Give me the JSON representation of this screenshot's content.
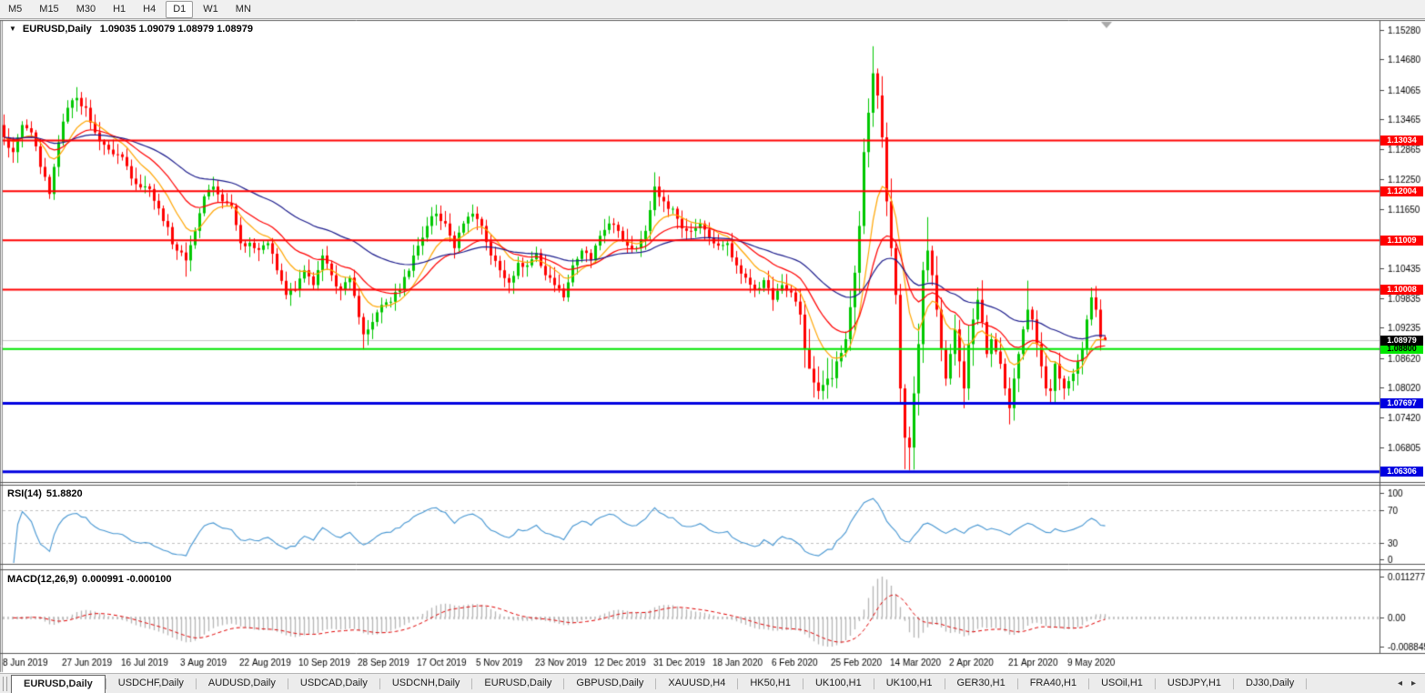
{
  "toolbar": {
    "timeframes": [
      {
        "label": "M5",
        "active": false
      },
      {
        "label": "M15",
        "active": false
      },
      {
        "label": "M30",
        "active": false
      },
      {
        "label": "H1",
        "active": false
      },
      {
        "label": "H4",
        "active": false
      },
      {
        "label": "D1",
        "active": true
      },
      {
        "label": "W1",
        "active": false
      },
      {
        "label": "MN",
        "active": false
      }
    ]
  },
  "header": {
    "symbol_label": "EURUSD,Daily",
    "ohlc_values": "1.09035 1.09079 1.08979 1.08979"
  },
  "rsi_panel": {
    "name": "RSI(14)",
    "value": "51.8820",
    "axis_ticks": [
      {
        "label": "100",
        "v": 100
      },
      {
        "label": "70",
        "v": 70
      },
      {
        "label": "30",
        "v": 30
      },
      {
        "label": "0",
        "v": 0
      }
    ],
    "guide_levels": [
      70,
      30
    ],
    "line_color": "#4696d2"
  },
  "macd_panel": {
    "name": "MACD(12,26,9)",
    "values": "0.000991 -0.000100",
    "axis_ticks": [
      {
        "label": "0.011277",
        "pos": "max"
      },
      {
        "label": "0.00",
        "pos": "zero"
      },
      {
        "label": "-0.008845",
        "pos": "min"
      }
    ],
    "histogram_color": "#b6b6b6",
    "signal_color": "#e00000"
  },
  "chart_data": {
    "type": "candlestick",
    "title": "EURUSD,Daily",
    "symbol": "EURUSD",
    "timeframe": "Daily",
    "last_bar_ohlc": {
      "open": 1.09035,
      "high": 1.09079,
      "low": 1.08979,
      "close": 1.08979
    },
    "ylim": [
      1.061,
      1.15483
    ],
    "y_axis_ticks": [
      1.1528,
      1.1468,
      1.14065,
      1.13465,
      1.12865,
      1.1225,
      1.1165,
      1.10435,
      1.09835,
      1.09235,
      1.0862,
      1.0802,
      1.0742,
      1.06805
    ],
    "x_axis_labels": [
      "8 Jun 2019",
      "27 Jun 2019",
      "16 Jul 2019",
      "3 Aug 2019",
      "22 Aug 2019",
      "10 Sep 2019",
      "28 Sep 2019",
      "17 Oct 2019",
      "5 Nov 2019",
      "23 Nov 2019",
      "12 Dec 2019",
      "31 Dec 2019",
      "18 Jan 2020",
      "6 Feb 2020",
      "25 Feb 2020",
      "14 Mar 2020",
      "2 Apr 2020",
      "21 Apr 2020",
      "9 May 2020"
    ],
    "bars_per_label": 13,
    "bar_count": 243,
    "close_anchors": [
      [
        0,
        1.131
      ],
      [
        2,
        1.128
      ],
      [
        4,
        1.1335
      ],
      [
        6,
        1.132
      ],
      [
        8,
        1.125
      ],
      [
        10,
        1.1195
      ],
      [
        12,
        1.13
      ],
      [
        14,
        1.137
      ],
      [
        16,
        1.139
      ],
      [
        18,
        1.137
      ],
      [
        20,
        1.132
      ],
      [
        23,
        1.1285
      ],
      [
        26,
        1.127
      ],
      [
        29,
        1.1215
      ],
      [
        32,
        1.1205
      ],
      [
        35,
        1.114
      ],
      [
        38,
        1.108
      ],
      [
        40,
        1.106
      ],
      [
        42,
        1.112
      ],
      [
        44,
        1.119
      ],
      [
        46,
        1.121
      ],
      [
        48,
        1.118
      ],
      [
        50,
        1.117
      ],
      [
        52,
        1.1095
      ],
      [
        55,
        1.1085
      ],
      [
        58,
        1.1095
      ],
      [
        60,
        1.104
      ],
      [
        62,
        1.099
      ],
      [
        64,
        1.1
      ],
      [
        66,
        1.104
      ],
      [
        68,
        1.101
      ],
      [
        70,
        1.107
      ],
      [
        72,
        1.103
      ],
      [
        74,
        1.1
      ],
      [
        76,
        1.1025
      ],
      [
        78,
        1.0945
      ],
      [
        79,
        1.091
      ],
      [
        81,
        1.0935
      ],
      [
        84,
        1.0975
      ],
      [
        87,
        1.1
      ],
      [
        90,
        1.107
      ],
      [
        93,
        1.113
      ],
      [
        95,
        1.1155
      ],
      [
        97,
        1.1135
      ],
      [
        99,
        1.1085
      ],
      [
        101,
        1.1135
      ],
      [
        103,
        1.1155
      ],
      [
        105,
        1.113
      ],
      [
        107,
        1.107
      ],
      [
        109,
        1.104
      ],
      [
        111,
        1.1015
      ],
      [
        113,
        1.1055
      ],
      [
        115,
        1.105
      ],
      [
        117,
        1.1075
      ],
      [
        119,
        1.103
      ],
      [
        121,
        1.101
      ],
      [
        123,
        1.0985
      ],
      [
        125,
        1.105
      ],
      [
        127,
        1.108
      ],
      [
        129,
        1.106
      ],
      [
        131,
        1.111
      ],
      [
        133,
        1.1135
      ],
      [
        135,
        1.112
      ],
      [
        137,
        1.109
      ],
      [
        139,
        1.1085
      ],
      [
        141,
        1.112
      ],
      [
        143,
        1.121
      ],
      [
        145,
        1.118
      ],
      [
        147,
        1.1165
      ],
      [
        149,
        1.1125
      ],
      [
        151,
        1.112
      ],
      [
        153,
        1.1135
      ],
      [
        155,
        1.1105
      ],
      [
        157,
        1.109
      ],
      [
        159,
        1.1095
      ],
      [
        161,
        1.105
      ],
      [
        163,
        1.1025
      ],
      [
        165,
        1.1
      ],
      [
        167,
        1.102
      ],
      [
        169,
        1.098
      ],
      [
        171,
        1.101
      ],
      [
        173,
        1.0995
      ],
      [
        175,
        1.095
      ],
      [
        177,
        1.084
      ],
      [
        179,
        1.0795
      ],
      [
        181,
        1.082
      ],
      [
        183,
        1.0855
      ],
      [
        185,
        1.09
      ],
      [
        186,
        1.0965
      ],
      [
        187,
        1.1035
      ],
      [
        188,
        1.113
      ],
      [
        189,
        1.128
      ],
      [
        190,
        1.136
      ],
      [
        191,
        1.144
      ],
      [
        192,
        1.1395
      ],
      [
        193,
        1.131
      ],
      [
        194,
        1.118
      ],
      [
        195,
        1.1085
      ],
      [
        196,
        1.099
      ],
      [
        197,
        1.08
      ],
      [
        198,
        1.07
      ],
      [
        199,
        1.068
      ],
      [
        200,
        1.079
      ],
      [
        201,
        1.089
      ],
      [
        202,
        1.104
      ],
      [
        203,
        1.108
      ],
      [
        204,
        1.103
      ],
      [
        205,
        1.096
      ],
      [
        206,
        1.088
      ],
      [
        207,
        1.082
      ],
      [
        208,
        1.087
      ],
      [
        209,
        1.092
      ],
      [
        210,
        1.0855
      ],
      [
        211,
        1.08
      ],
      [
        212,
        1.089
      ],
      [
        213,
        1.094
      ],
      [
        214,
        1.098
      ],
      [
        215,
        1.0935
      ],
      [
        216,
        1.087
      ],
      [
        217,
        1.09
      ],
      [
        218,
        1.0875
      ],
      [
        219,
        1.085
      ],
      [
        220,
        1.08
      ],
      [
        221,
        1.076
      ],
      [
        222,
        1.082
      ],
      [
        223,
        1.087
      ],
      [
        224,
        1.092
      ],
      [
        225,
        1.096
      ],
      [
        226,
        1.094
      ],
      [
        227,
        1.089
      ],
      [
        228,
        1.0845
      ],
      [
        229,
        1.08
      ],
      [
        230,
        1.0795
      ],
      [
        231,
        1.085
      ],
      [
        232,
        1.082
      ],
      [
        233,
        1.08
      ],
      [
        234,
        1.0815
      ],
      [
        235,
        1.083
      ],
      [
        236,
        1.0855
      ],
      [
        237,
        1.088
      ],
      [
        238,
        1.094
      ],
      [
        239,
        1.0985
      ],
      [
        240,
        1.096
      ],
      [
        241,
        1.0904
      ],
      [
        242,
        1.08979
      ]
    ],
    "spike_highs": {
      "16": 1.1412,
      "46": 1.123,
      "143": 1.1239,
      "191": 1.1495,
      "203": 1.1148,
      "225": 1.1019,
      "239": 1.1005,
      "240": 1.1008
    },
    "spike_lows": {
      "40": 1.1027,
      "79": 1.0879,
      "177": 1.0865,
      "179": 1.0778,
      "198": 1.0636,
      "221": 1.0727,
      "230": 1.0767
    },
    "bull_color": "#00c800",
    "bear_color": "#ff0000",
    "moving_averages": [
      {
        "period": 10,
        "color": "#ffa500"
      },
      {
        "period": 21,
        "color": "#ff0000"
      },
      {
        "period": 50,
        "color": "#1c1c8c"
      }
    ],
    "levels": [
      {
        "label": "1.13034",
        "price": 1.13034,
        "color": "#ff0000",
        "text_color": "#ffffff",
        "width": 2
      },
      {
        "label": "1.12004",
        "price": 1.12004,
        "color": "#ff0000",
        "text_color": "#ffffff",
        "width": 2
      },
      {
        "label": "1.11009",
        "price": 1.11009,
        "color": "#ff0000",
        "text_color": "#ffffff",
        "width": 2
      },
      {
        "label": "1.10008",
        "price": 1.10008,
        "color": "#ff0000",
        "text_color": "#ffffff",
        "width": 2
      },
      {
        "label": "1.08800",
        "price": 1.088,
        "color": "#00e600",
        "text_color": "#000000",
        "width": 2
      },
      {
        "label": "1.07697",
        "price": 1.07697,
        "color": "#0000e0",
        "text_color": "#ffffff",
        "width": 3
      },
      {
        "label": "1.06306",
        "price": 1.06306,
        "color": "#0000e0",
        "text_color": "#ffffff",
        "width": 3
      }
    ],
    "current_price": {
      "label": "1.08979",
      "price": 1.08979,
      "bg": "#000000",
      "text_color": "#ffffff",
      "line_color": "#c8c8c8"
    }
  },
  "tabs": {
    "items": [
      {
        "label": "EURUSD,Daily",
        "active": true
      },
      {
        "label": "USDCHF,Daily",
        "active": false
      },
      {
        "label": "AUDUSD,Daily",
        "active": false
      },
      {
        "label": "USDCAD,Daily",
        "active": false
      },
      {
        "label": "USDCNH,Daily",
        "active": false
      },
      {
        "label": "EURUSD,Daily",
        "active": false
      },
      {
        "label": "GBPUSD,Daily",
        "active": false
      },
      {
        "label": "XAUUSD,H4",
        "active": false
      },
      {
        "label": "HK50,H1",
        "active": false
      },
      {
        "label": "UK100,H1",
        "active": false
      },
      {
        "label": "UK100,H1",
        "active": false
      },
      {
        "label": "GER30,H1",
        "active": false
      },
      {
        "label": "FRA40,H1",
        "active": false
      },
      {
        "label": "USOil,H1",
        "active": false
      },
      {
        "label": "USDJPY,H1",
        "active": false
      },
      {
        "label": "DJ30,Daily",
        "active": false
      }
    ],
    "scroll_left": "◂",
    "scroll_right": "▸"
  }
}
